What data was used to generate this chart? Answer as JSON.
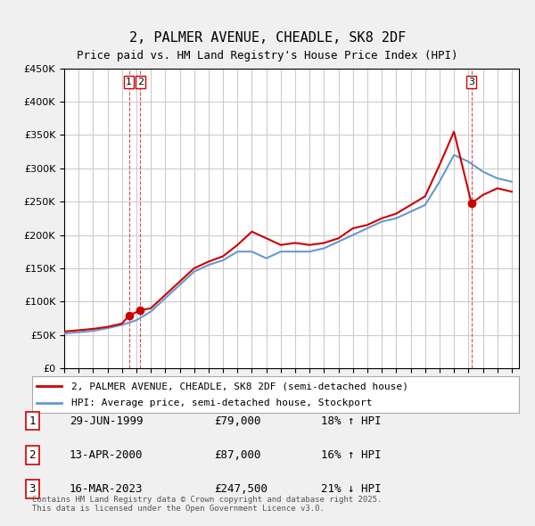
{
  "title": "2, PALMER AVENUE, CHEADLE, SK8 2DF",
  "subtitle": "Price paid vs. HM Land Registry's House Price Index (HPI)",
  "ylim": [
    0,
    450000
  ],
  "yticks": [
    0,
    50000,
    100000,
    150000,
    200000,
    250000,
    300000,
    350000,
    400000,
    450000
  ],
  "ylabel_format": "£{0}K",
  "background_color": "#f0f0f0",
  "plot_background_color": "#ffffff",
  "grid_color": "#cccccc",
  "red_line_color": "#cc0000",
  "blue_line_color": "#6699cc",
  "annotation_box_color": "#cc0000",
  "vline_color": "#cc0000",
  "transactions": [
    {
      "label": "1",
      "date_num": 1999.49,
      "price": 79000,
      "note": "29-JUN-1999",
      "pct": "18%",
      "dir": "↑"
    },
    {
      "label": "2",
      "date_num": 2000.28,
      "price": 87000,
      "note": "13-APR-2000",
      "pct": "16%",
      "dir": "↑"
    },
    {
      "label": "3",
      "date_num": 2023.21,
      "price": 247500,
      "note": "16-MAR-2023",
      "pct": "21%",
      "dir": "↓"
    }
  ],
  "hpi_years": [
    1995,
    1996,
    1997,
    1998,
    1999,
    2000,
    2001,
    2002,
    2003,
    2004,
    2005,
    2006,
    2007,
    2008,
    2009,
    2010,
    2011,
    2012,
    2013,
    2014,
    2015,
    2016,
    2017,
    2018,
    2019,
    2020,
    2021,
    2022,
    2023,
    2024,
    2025,
    2026
  ],
  "hpi_values": [
    52000,
    54000,
    56000,
    60000,
    65000,
    72000,
    85000,
    105000,
    125000,
    145000,
    155000,
    162000,
    175000,
    175000,
    165000,
    175000,
    175000,
    175000,
    180000,
    190000,
    200000,
    210000,
    220000,
    225000,
    235000,
    245000,
    280000,
    320000,
    310000,
    295000,
    285000,
    280000
  ],
  "price_years": [
    1995,
    1996,
    1997,
    1998,
    1999.0,
    1999.49,
    2000.28,
    2001,
    2002,
    2003,
    2004,
    2005,
    2006,
    2007,
    2008,
    2009,
    2010,
    2011,
    2012,
    2013,
    2014,
    2015,
    2016,
    2017,
    2018,
    2019,
    2020,
    2021,
    2022,
    2023.21,
    2024,
    2025,
    2026
  ],
  "price_values": [
    55000,
    57000,
    59000,
    62000,
    67000,
    79000,
    87000,
    90000,
    110000,
    130000,
    150000,
    160000,
    168000,
    185000,
    205000,
    195000,
    185000,
    188000,
    185000,
    188000,
    195000,
    210000,
    215000,
    225000,
    232000,
    245000,
    258000,
    305000,
    355000,
    247500,
    260000,
    270000,
    265000
  ],
  "legend_entries": [
    {
      "label": "2, PALMER AVENUE, CHEADLE, SK8 2DF (semi-detached house)",
      "color": "#cc0000"
    },
    {
      "label": "HPI: Average price, semi-detached house, Stockport",
      "color": "#6699cc"
    }
  ],
  "footnote": "Contains HM Land Registry data © Crown copyright and database right 2025.\nThis data is licensed under the Open Government Licence v3.0.",
  "table_rows": [
    {
      "num": "1",
      "date": "29-JUN-1999",
      "price": "£79,000",
      "pct": "18% ↑ HPI"
    },
    {
      "num": "2",
      "date": "13-APR-2000",
      "price": "£87,000",
      "pct": "16% ↑ HPI"
    },
    {
      "num": "3",
      "date": "16-MAR-2023",
      "price": "£247,500",
      "pct": "21% ↓ HPI"
    }
  ]
}
